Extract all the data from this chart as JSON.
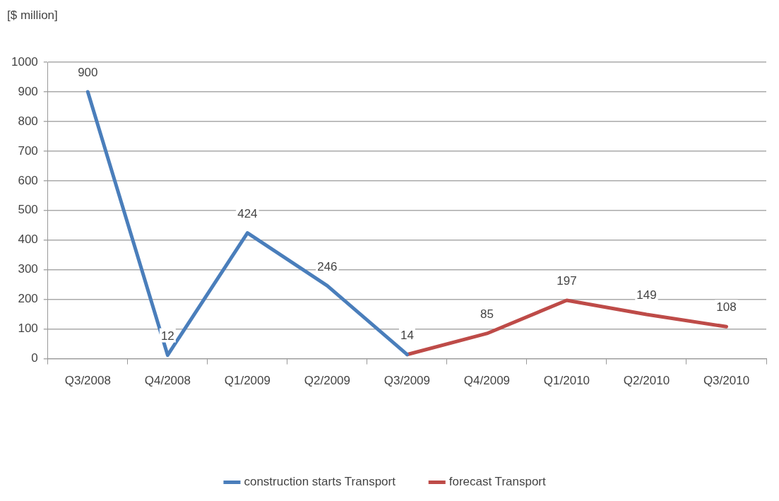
{
  "chart_data": {
    "type": "line",
    "ylabel": "[$ million]",
    "categories": [
      "Q3/2008",
      "Q4/2008",
      "Q1/2009",
      "Q2/2009",
      "Q3/2009",
      "Q4/2009",
      "Q1/2010",
      "Q2/2010",
      "Q3/2010"
    ],
    "series": [
      {
        "name": "construction starts Transport",
        "color": "#4a7ebb",
        "values": [
          900,
          12,
          424,
          246,
          14,
          null,
          null,
          null,
          null
        ],
        "value_labels": [
          "900",
          "12",
          "424",
          "246",
          "14",
          null,
          null,
          null,
          null
        ]
      },
      {
        "name": "forecast Transport",
        "color": "#be4b48",
        "values": [
          null,
          null,
          null,
          null,
          14,
          85,
          197,
          149,
          108
        ],
        "value_labels": [
          null,
          null,
          null,
          null,
          null,
          "85",
          "197",
          "149",
          "108"
        ]
      }
    ],
    "ylim": [
      0,
      1000
    ],
    "yticks": [
      0,
      100,
      200,
      300,
      400,
      500,
      600,
      700,
      800,
      900,
      1000
    ],
    "grid": "y",
    "legend": "bottom",
    "marker": "none",
    "line_style": "solid"
  }
}
